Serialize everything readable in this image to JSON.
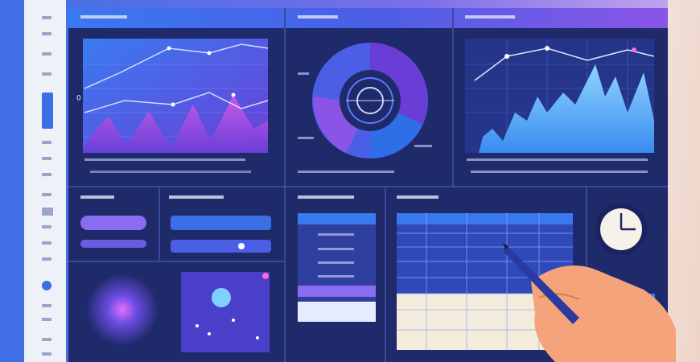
{
  "first_chart": {
    "y_label": "0"
  }
}
